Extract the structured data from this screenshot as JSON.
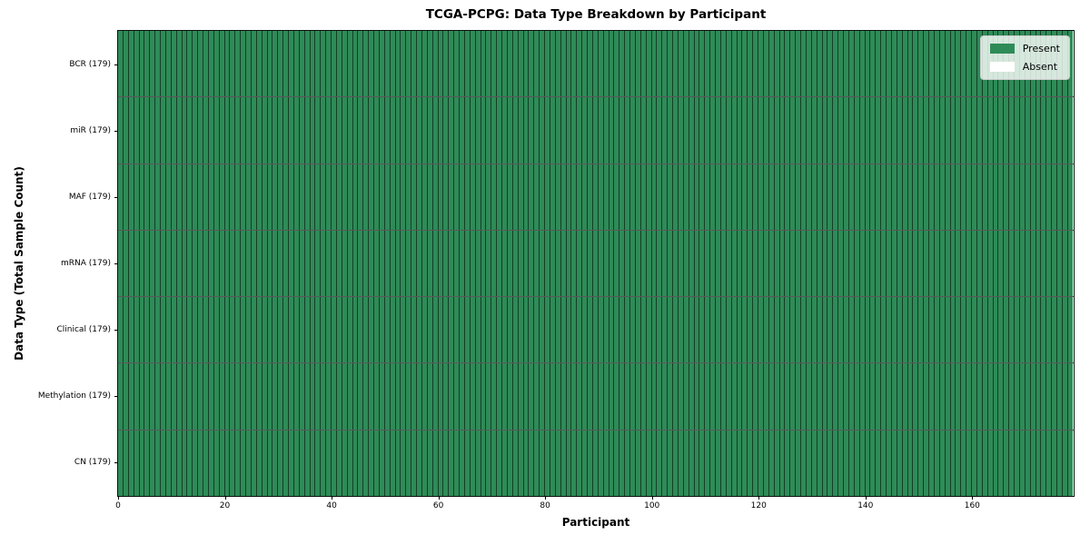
{
  "title": "TCGA-PCPG: Data Type Breakdown by Participant",
  "axes": {
    "xlabel": "Participant",
    "ylabel": "Data Type (Total Sample Count)"
  },
  "legend": {
    "items": [
      {
        "label": "Present",
        "color": "#2e8b57"
      },
      {
        "label": "Absent",
        "color": "#ffffff"
      }
    ]
  },
  "chart_data": {
    "type": "heatmap",
    "title": "TCGA-PCPG: Data Type Breakdown by Participant",
    "xlabel": "Participant",
    "ylabel": "Data Type (Total Sample Count)",
    "categories": [
      "BCR (179)",
      "miR (179)",
      "MAF (179)",
      "mRNA (179)",
      "Clinical (179)",
      "Methylation (179)",
      "CN (179)"
    ],
    "n_participants": 179,
    "series": [
      {
        "name": "BCR (179)",
        "present_count": 179,
        "absent_count": 0
      },
      {
        "name": "miR (179)",
        "present_count": 179,
        "absent_count": 0
      },
      {
        "name": "MAF (179)",
        "present_count": 179,
        "absent_count": 0
      },
      {
        "name": "mRNA (179)",
        "present_count": 179,
        "absent_count": 0
      },
      {
        "name": "Clinical (179)",
        "present_count": 179,
        "absent_count": 0
      },
      {
        "name": "Methylation (179)",
        "present_count": 179,
        "absent_count": 0
      },
      {
        "name": "CN (179)",
        "present_count": 179,
        "absent_count": 0
      }
    ],
    "x_ticks": [
      0,
      20,
      40,
      60,
      80,
      100,
      120,
      140,
      160
    ],
    "xlim": [
      0,
      179
    ],
    "colors": {
      "present": "#2e8b57",
      "absent": "#ffffff"
    },
    "grid": "cell-edges",
    "legend_position": "upper right",
    "legend_entries": [
      "Present",
      "Absent"
    ]
  }
}
